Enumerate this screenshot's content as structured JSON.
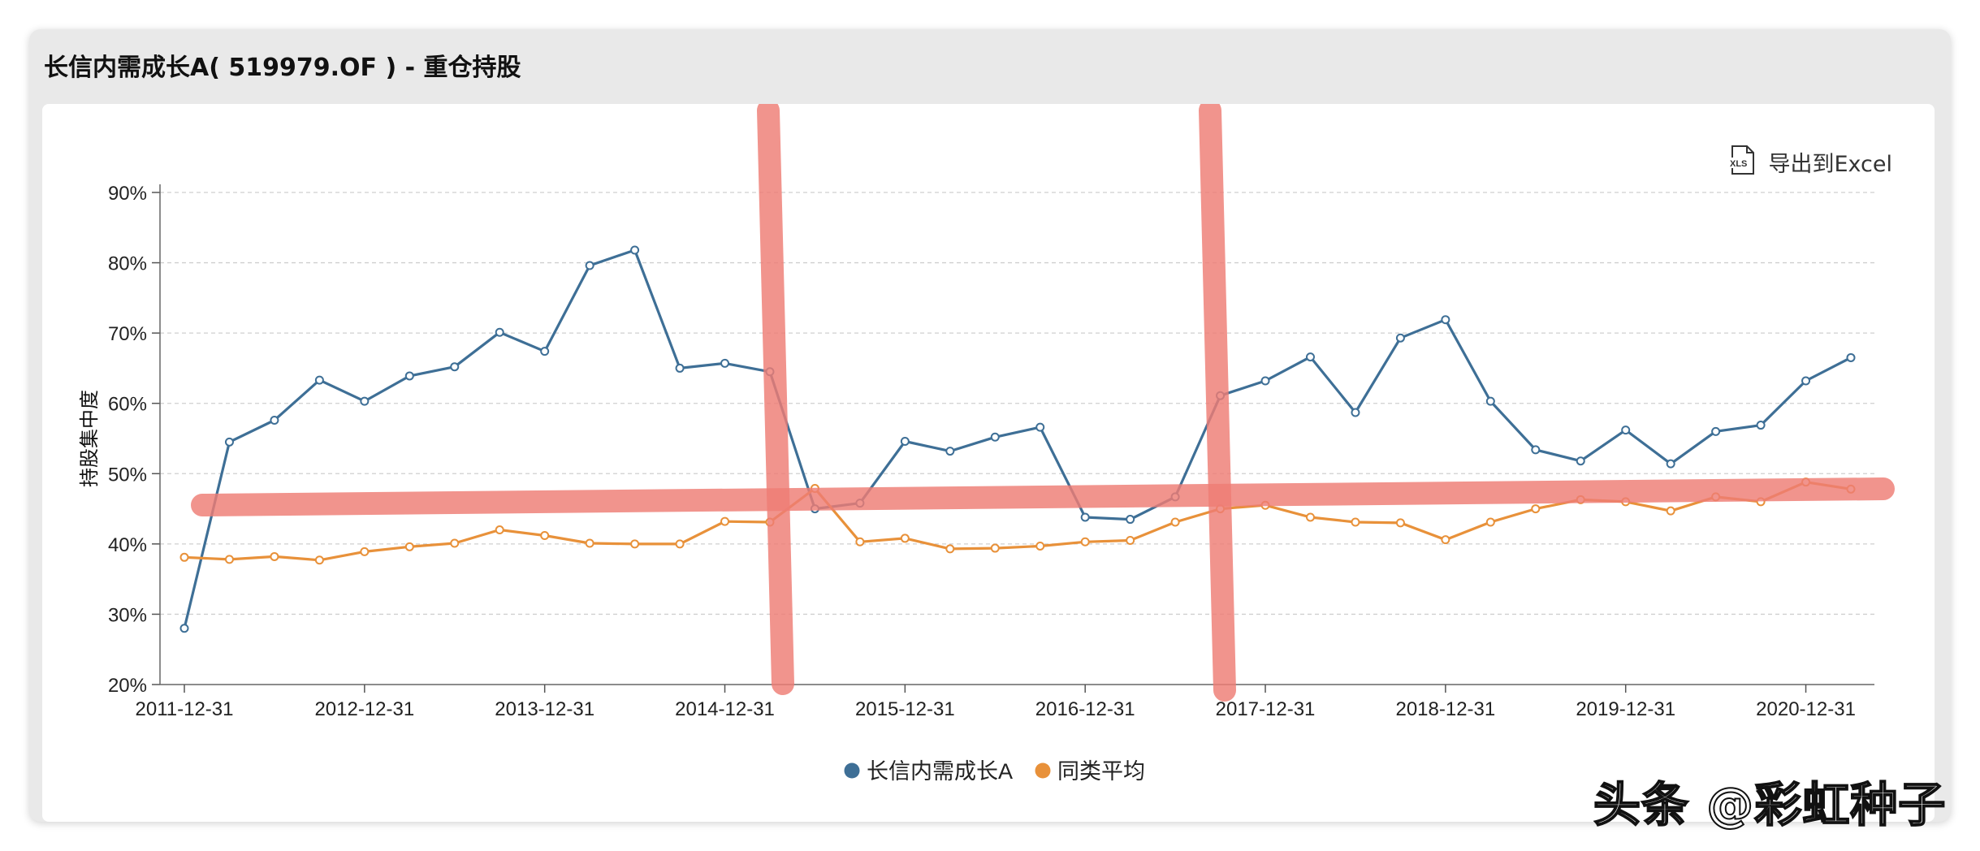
{
  "panel": {
    "title": "长信内需成长A( 519979.OF ) - 重仓持股",
    "export_label": "导出到Excel",
    "export_icon": "xls-file-icon"
  },
  "watermark": "头条 @彩虹种子",
  "colors": {
    "series_fund": "#3e6f96",
    "series_avg": "#e8913a",
    "annotation": "#ef7d75"
  },
  "chart_data": {
    "type": "line",
    "title": "",
    "xlabel": "",
    "ylabel": "持股集中度",
    "ylim": [
      20,
      90
    ],
    "yticks": [
      "20%",
      "30%",
      "40%",
      "50%",
      "60%",
      "70%",
      "80%",
      "90%"
    ],
    "x_tick_labels": [
      "2011-12-31",
      "2012-12-31",
      "2013-12-31",
      "2014-12-31",
      "2015-12-31",
      "2016-12-31",
      "2017-12-31",
      "2018-12-31",
      "2019-12-31",
      "2020-12-31"
    ],
    "x": [
      "2011-12-31",
      "2012-03-31",
      "2012-06-30",
      "2012-09-30",
      "2012-12-31",
      "2013-03-31",
      "2013-06-30",
      "2013-09-30",
      "2013-12-31",
      "2014-03-31",
      "2014-06-30",
      "2014-09-30",
      "2014-12-31",
      "2015-03-31",
      "2015-06-30",
      "2015-09-30",
      "2015-12-31",
      "2016-03-31",
      "2016-06-30",
      "2016-09-30",
      "2016-12-31",
      "2017-03-31",
      "2017-06-30",
      "2017-09-30",
      "2017-12-31",
      "2018-03-31",
      "2018-06-30",
      "2018-09-30",
      "2018-12-31",
      "2019-03-31",
      "2019-06-30",
      "2019-09-30",
      "2019-12-31",
      "2020-03-31",
      "2020-06-30",
      "2020-09-30",
      "2020-12-31",
      "2021-03-31"
    ],
    "grid": true,
    "legend": "bottom-center",
    "series": [
      {
        "name": "长信内需成长A",
        "color": "#3e6f96",
        "values": [
          28.0,
          54.5,
          57.6,
          63.3,
          60.3,
          63.9,
          65.2,
          70.1,
          67.4,
          79.6,
          81.8,
          65.0,
          65.7,
          64.5,
          45.0,
          45.8,
          54.6,
          53.2,
          55.2,
          56.6,
          43.8,
          43.5,
          46.7,
          61.1,
          63.2,
          66.6,
          58.7,
          69.3,
          71.9,
          60.3,
          53.4,
          51.8,
          56.2,
          51.4,
          56.0,
          56.9,
          63.2,
          66.5
        ]
      },
      {
        "name": "同类平均",
        "color": "#e8913a",
        "values": [
          38.1,
          37.8,
          38.2,
          37.7,
          38.9,
          39.6,
          40.1,
          42.0,
          41.2,
          40.1,
          40.0,
          40.0,
          43.2,
          43.1,
          47.9,
          40.3,
          40.8,
          39.3,
          39.4,
          39.7,
          40.3,
          40.5,
          43.1,
          45.0,
          45.5,
          43.8,
          43.1,
          43.0,
          40.6,
          43.1,
          45.0,
          46.3,
          46.0,
          44.7,
          46.7,
          46.0,
          48.8,
          47.8
        ]
      }
    ]
  }
}
